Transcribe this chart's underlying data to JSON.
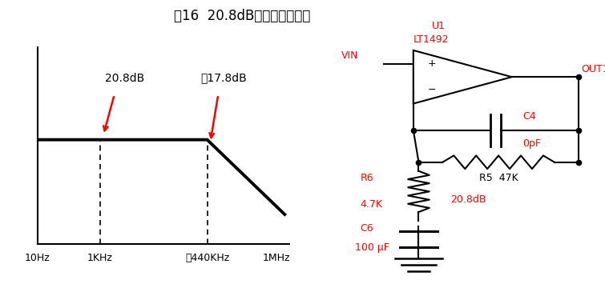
{
  "title": "図16  20.8dB時の周波数特性",
  "title_fontsize": 12,
  "title_color": "#000000",
  "freq_labels": [
    "10Hz",
    "1KHz",
    "約440KHz",
    "1MHz"
  ],
  "annotation_20db": "20.8dB",
  "annotation_17db": "約17.8dB",
  "red_color": "#ff0000",
  "black_color": "#000000",
  "circuit_U1": "U1",
  "circuit_LT1492": "LT1492",
  "circuit_VIN": "VIN",
  "circuit_OUT1": "OUT1",
  "circuit_C4": "C4",
  "circuit_C4val": "0pF",
  "circuit_R5": "R5  47K",
  "circuit_R6": "R6",
  "circuit_R6val": "4.7K",
  "circuit_gain": "20.8dB",
  "circuit_C6": "C6",
  "circuit_C6val": "100 μF"
}
